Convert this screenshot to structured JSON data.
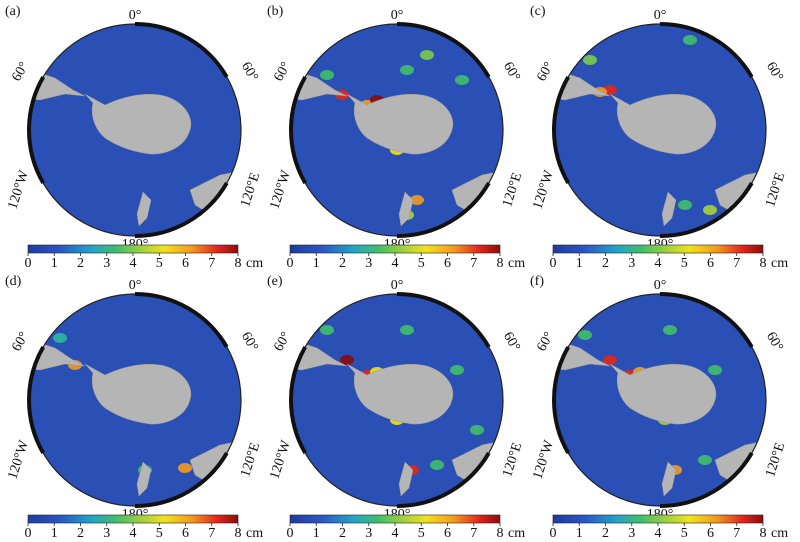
{
  "panels": [
    {
      "label": "(a)"
    },
    {
      "label": "(b)"
    },
    {
      "label": "(c)"
    },
    {
      "label": "(d)"
    },
    {
      "label": "(e)"
    },
    {
      "label": "(f)"
    }
  ],
  "map_labels": {
    "top": "0°",
    "left": "60°",
    "right": "60°",
    "lower_left": "120°W",
    "lower_right": "120°E",
    "bottom": "180°"
  },
  "colorbar": {
    "ticks": [
      0,
      1,
      2,
      3,
      4,
      5,
      6,
      7,
      8
    ],
    "unit": "cm"
  }
}
